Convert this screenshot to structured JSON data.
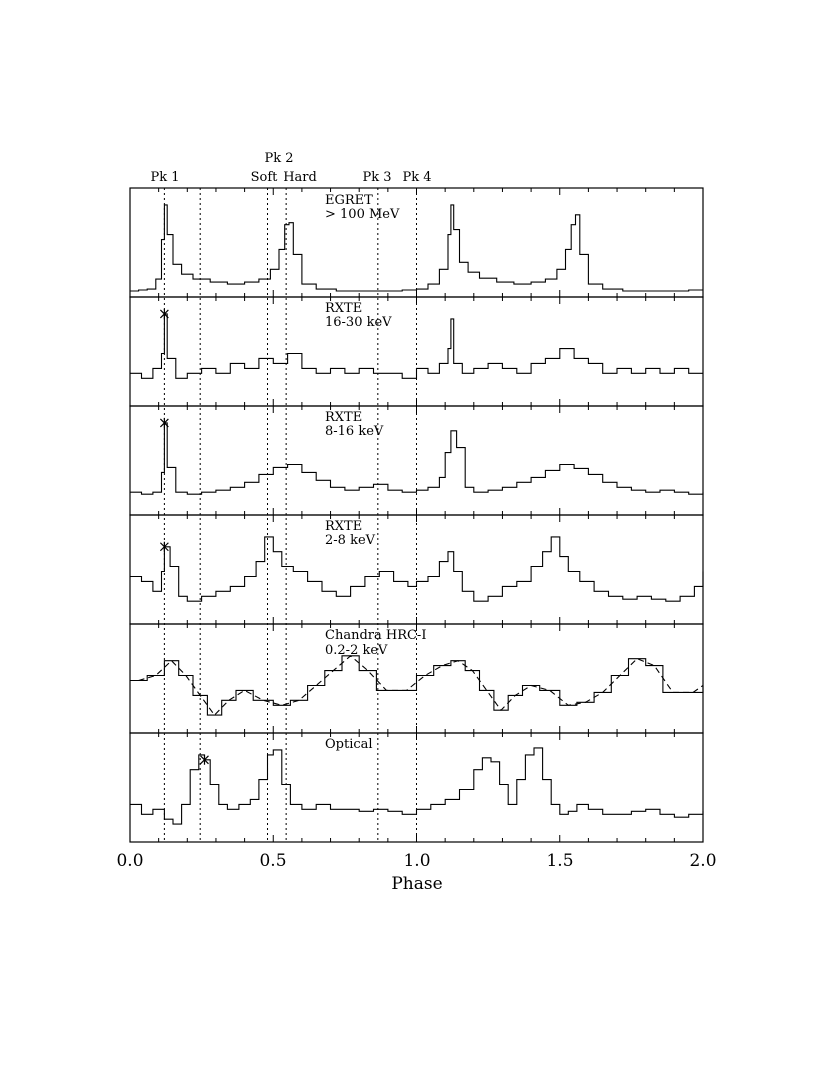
{
  "chart_data": {
    "type": "line",
    "xlabel": "Phase",
    "xlim": [
      0.0,
      2.0
    ],
    "x_ticks": [
      "0.0",
      "0.5",
      "1.0",
      "1.5",
      "2.0"
    ],
    "phase_markers": [
      {
        "x": 0.12,
        "label": "Pk 1"
      },
      {
        "x": 0.245,
        "label": ""
      },
      {
        "x": 0.48,
        "label": "Soft"
      },
      {
        "x": 0.545,
        "label": "Hard"
      },
      {
        "x": 0.865,
        "label": "Pk 3"
      },
      {
        "x": 1.0,
        "label": "Pk 4"
      }
    ],
    "top_labels": {
      "pk1": "Pk 1",
      "pk2": "Pk 2",
      "soft": "Soft",
      "hard": "Hard",
      "pk3": "Pk 3",
      "pk4": "Pk 4"
    },
    "panels": [
      {
        "name": "EGRET",
        "sub": "> 100 MeV",
        "style": "histogram",
        "x": [
          0.0,
          0.03,
          0.06,
          0.09,
          0.11,
          0.12,
          0.13,
          0.15,
          0.18,
          0.22,
          0.28,
          0.34,
          0.4,
          0.45,
          0.49,
          0.52,
          0.54,
          0.555,
          0.57,
          0.6,
          0.65,
          0.72,
          0.8,
          0.88,
          0.95,
          1.0,
          1.04,
          1.08,
          1.11,
          1.12,
          1.13,
          1.15,
          1.18,
          1.22,
          1.28,
          1.34,
          1.4,
          1.45,
          1.49,
          1.52,
          1.54,
          1.555,
          1.57,
          1.6,
          1.65,
          1.72,
          1.8,
          1.88,
          1.95,
          2.0
        ],
        "y": [
          0.03,
          0.04,
          0.05,
          0.15,
          0.55,
          0.9,
          0.6,
          0.3,
          0.2,
          0.15,
          0.12,
          0.1,
          0.12,
          0.15,
          0.25,
          0.45,
          0.7,
          0.72,
          0.4,
          0.1,
          0.05,
          0.03,
          0.03,
          0.03,
          0.04,
          0.05,
          0.1,
          0.25,
          0.6,
          0.9,
          0.65,
          0.32,
          0.22,
          0.16,
          0.12,
          0.1,
          0.12,
          0.15,
          0.25,
          0.45,
          0.7,
          0.8,
          0.4,
          0.1,
          0.05,
          0.03,
          0.03,
          0.03,
          0.04,
          0.04
        ]
      },
      {
        "name": "RXTE",
        "sub": "16-30 keV",
        "style": "histogram",
        "peak_marker": 0.12,
        "x": [
          0.0,
          0.04,
          0.08,
          0.11,
          0.12,
          0.13,
          0.16,
          0.2,
          0.25,
          0.3,
          0.35,
          0.4,
          0.45,
          0.5,
          0.55,
          0.6,
          0.65,
          0.7,
          0.75,
          0.8,
          0.85,
          0.9,
          0.95,
          1.0,
          1.04,
          1.08,
          1.11,
          1.12,
          1.13,
          1.16,
          1.2,
          1.25,
          1.3,
          1.35,
          1.4,
          1.45,
          1.5,
          1.55,
          1.6,
          1.65,
          1.7,
          1.75,
          1.8,
          1.85,
          1.9,
          1.95,
          2.0
        ],
        "y": [
          0.3,
          0.25,
          0.35,
          0.5,
          0.9,
          0.45,
          0.25,
          0.3,
          0.35,
          0.3,
          0.4,
          0.35,
          0.45,
          0.4,
          0.5,
          0.35,
          0.3,
          0.35,
          0.3,
          0.35,
          0.3,
          0.3,
          0.25,
          0.35,
          0.3,
          0.4,
          0.55,
          0.85,
          0.4,
          0.3,
          0.35,
          0.4,
          0.35,
          0.3,
          0.4,
          0.45,
          0.55,
          0.45,
          0.4,
          0.3,
          0.35,
          0.3,
          0.35,
          0.3,
          0.35,
          0.3,
          0.3
        ]
      },
      {
        "name": "RXTE",
        "sub": "8-16 keV",
        "style": "histogram",
        "peak_marker": 0.12,
        "x": [
          0.0,
          0.04,
          0.08,
          0.11,
          0.12,
          0.13,
          0.16,
          0.2,
          0.25,
          0.3,
          0.35,
          0.4,
          0.45,
          0.5,
          0.55,
          0.6,
          0.65,
          0.7,
          0.75,
          0.8,
          0.85,
          0.9,
          0.95,
          1.0,
          1.04,
          1.08,
          1.1,
          1.12,
          1.14,
          1.17,
          1.2,
          1.25,
          1.3,
          1.35,
          1.4,
          1.45,
          1.5,
          1.55,
          1.6,
          1.65,
          1.7,
          1.75,
          1.8,
          1.85,
          1.9,
          1.95,
          2.0
        ],
        "y": [
          0.2,
          0.18,
          0.2,
          0.4,
          0.9,
          0.45,
          0.2,
          0.18,
          0.2,
          0.22,
          0.25,
          0.3,
          0.38,
          0.45,
          0.48,
          0.4,
          0.32,
          0.25,
          0.22,
          0.25,
          0.28,
          0.22,
          0.2,
          0.22,
          0.25,
          0.35,
          0.6,
          0.82,
          0.65,
          0.25,
          0.2,
          0.22,
          0.25,
          0.3,
          0.35,
          0.42,
          0.48,
          0.44,
          0.38,
          0.3,
          0.25,
          0.22,
          0.2,
          0.22,
          0.2,
          0.18,
          0.2
        ]
      },
      {
        "name": "RXTE",
        "sub": "2-8 keV",
        "style": "histogram",
        "peak_marker": 0.12,
        "x": [
          0.0,
          0.04,
          0.08,
          0.11,
          0.12,
          0.14,
          0.17,
          0.2,
          0.25,
          0.3,
          0.35,
          0.4,
          0.44,
          0.47,
          0.5,
          0.53,
          0.57,
          0.62,
          0.67,
          0.72,
          0.77,
          0.82,
          0.87,
          0.92,
          0.97,
          1.0,
          1.04,
          1.08,
          1.11,
          1.13,
          1.16,
          1.2,
          1.25,
          1.3,
          1.35,
          1.4,
          1.44,
          1.47,
          1.5,
          1.53,
          1.57,
          1.62,
          1.67,
          1.72,
          1.77,
          1.82,
          1.87,
          1.92,
          1.97,
          2.0
        ],
        "y": [
          0.45,
          0.4,
          0.3,
          0.5,
          0.75,
          0.55,
          0.25,
          0.2,
          0.25,
          0.3,
          0.35,
          0.45,
          0.6,
          0.85,
          0.7,
          0.55,
          0.5,
          0.4,
          0.3,
          0.25,
          0.35,
          0.45,
          0.5,
          0.4,
          0.35,
          0.4,
          0.45,
          0.6,
          0.7,
          0.5,
          0.3,
          0.2,
          0.25,
          0.35,
          0.4,
          0.55,
          0.7,
          0.85,
          0.65,
          0.5,
          0.4,
          0.3,
          0.25,
          0.22,
          0.25,
          0.22,
          0.2,
          0.25,
          0.35,
          0.5
        ]
      },
      {
        "name": "Chandra HRC-I",
        "sub": "0.2-2 keV",
        "style": "histogram+model",
        "x": [
          0.0,
          0.06,
          0.12,
          0.17,
          0.22,
          0.27,
          0.32,
          0.37,
          0.43,
          0.5,
          0.56,
          0.62,
          0.68,
          0.74,
          0.8,
          0.86,
          0.93,
          1.0,
          1.06,
          1.12,
          1.17,
          1.22,
          1.27,
          1.32,
          1.37,
          1.43,
          1.5,
          1.56,
          1.62,
          1.68,
          1.74,
          1.8,
          1.86,
          1.93,
          2.0
        ],
        "y": [
          0.5,
          0.55,
          0.7,
          0.55,
          0.35,
          0.15,
          0.3,
          0.4,
          0.3,
          0.25,
          0.3,
          0.45,
          0.6,
          0.75,
          0.6,
          0.4,
          0.4,
          0.55,
          0.65,
          0.7,
          0.6,
          0.4,
          0.2,
          0.35,
          0.45,
          0.4,
          0.25,
          0.28,
          0.38,
          0.55,
          0.72,
          0.65,
          0.38,
          0.38,
          0.45
        ]
      },
      {
        "name": "Optical",
        "sub": "",
        "style": "histogram",
        "peak_marker": 0.26,
        "x": [
          0.0,
          0.04,
          0.08,
          0.12,
          0.15,
          0.18,
          0.21,
          0.24,
          0.26,
          0.28,
          0.31,
          0.34,
          0.38,
          0.42,
          0.45,
          0.48,
          0.5,
          0.53,
          0.56,
          0.6,
          0.65,
          0.7,
          0.75,
          0.8,
          0.85,
          0.9,
          0.95,
          1.0,
          1.05,
          1.1,
          1.15,
          1.2,
          1.23,
          1.26,
          1.29,
          1.32,
          1.35,
          1.38,
          1.41,
          1.44,
          1.47,
          1.5,
          1.53,
          1.56,
          1.6,
          1.65,
          1.7,
          1.75,
          1.8,
          1.85,
          1.9,
          1.95,
          2.0
        ],
        "y": [
          0.35,
          0.25,
          0.3,
          0.2,
          0.15,
          0.35,
          0.7,
          0.85,
          0.8,
          0.55,
          0.35,
          0.3,
          0.35,
          0.4,
          0.6,
          0.85,
          0.9,
          0.55,
          0.35,
          0.3,
          0.35,
          0.3,
          0.3,
          0.28,
          0.3,
          0.28,
          0.25,
          0.3,
          0.35,
          0.4,
          0.5,
          0.7,
          0.82,
          0.78,
          0.55,
          0.35,
          0.6,
          0.85,
          0.92,
          0.6,
          0.35,
          0.25,
          0.28,
          0.35,
          0.3,
          0.25,
          0.25,
          0.28,
          0.3,
          0.25,
          0.22,
          0.25,
          0.28
        ]
      }
    ]
  }
}
